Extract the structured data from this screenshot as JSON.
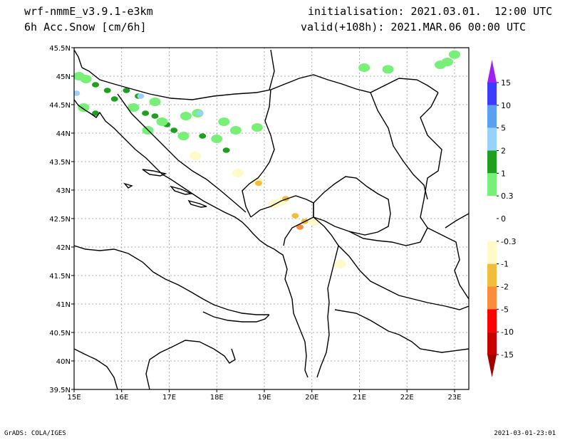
{
  "header": {
    "model": "wrf-nmmE_v3.9.1-e3km",
    "field": "6h Acc.Snow [cm/6h]",
    "initialisation": "initialisation: 2021.03.01.  12:00 UTC",
    "valid": "valid(+108h): 2021.MAR.06 00:00 UTC"
  },
  "footer": {
    "credit": "GrADS: COLA/IGES",
    "timestamp": "2021-03-01-23:01"
  },
  "map": {
    "lon_range": [
      15,
      23.3
    ],
    "lat_range": [
      39.5,
      45.5
    ],
    "lon_ticks": [
      {
        "value": 15,
        "label": "15E"
      },
      {
        "value": 16,
        "label": "16E"
      },
      {
        "value": 17,
        "label": "17E"
      },
      {
        "value": 18,
        "label": "18E"
      },
      {
        "value": 19,
        "label": "19E"
      },
      {
        "value": 20,
        "label": "20E"
      },
      {
        "value": 21,
        "label": "21E"
      },
      {
        "value": 22,
        "label": "22E"
      },
      {
        "value": 23,
        "label": "23E"
      }
    ],
    "lat_ticks": [
      {
        "value": 39.5,
        "label": "39.5N"
      },
      {
        "value": 40,
        "label": "40N"
      },
      {
        "value": 40.5,
        "label": "40.5N"
      },
      {
        "value": 41,
        "label": "41N"
      },
      {
        "value": 41.5,
        "label": "41.5N"
      },
      {
        "value": 42,
        "label": "42N"
      },
      {
        "value": 42.5,
        "label": "42.5N"
      },
      {
        "value": 43,
        "label": "43N"
      },
      {
        "value": 43.5,
        "label": "43.5N"
      },
      {
        "value": 44,
        "label": "44N"
      },
      {
        "value": 44.5,
        "label": "44.5N"
      },
      {
        "value": 45,
        "label": "45N"
      },
      {
        "value": 45.5,
        "label": "45.5N"
      }
    ],
    "grid": true,
    "colorbar": {
      "bins": [
        {
          "label": "15",
          "color": "#a020f0"
        },
        {
          "label": "10",
          "color": "#3c3cff"
        },
        {
          "label": "5",
          "color": "#5aa0f0"
        },
        {
          "label": "2",
          "color": "#96d2fa"
        },
        {
          "label": "1",
          "color": "#1ea01e"
        },
        {
          "label": "0.3",
          "color": "#78f078"
        },
        {
          "label": "0",
          "color": "#ffffff"
        },
        {
          "label": "-0.3",
          "color": "#ffffff"
        },
        {
          "label": "-1",
          "color": "#fffac8"
        },
        {
          "label": "-2",
          "color": "#f0be3c"
        },
        {
          "label": "-5",
          "color": "#fa8c3c"
        },
        {
          "label": "-10",
          "color": "#ff0000"
        },
        {
          "label": "-15",
          "color": "#c80000"
        }
      ],
      "top_color": "#a020f0",
      "bottom_color": "#a00000"
    },
    "snow_spots": [
      {
        "lon": 15.1,
        "lat": 45.0,
        "level": "0.3"
      },
      {
        "lon": 15.25,
        "lat": 44.95,
        "level": "0.3"
      },
      {
        "lon": 15.45,
        "lat": 44.85,
        "level": "1"
      },
      {
        "lon": 15.7,
        "lat": 44.75,
        "level": "1"
      },
      {
        "lon": 15.85,
        "lat": 44.6,
        "level": "1"
      },
      {
        "lon": 15.05,
        "lat": 44.7,
        "level": "2"
      },
      {
        "lon": 15.2,
        "lat": 44.45,
        "level": "0.3"
      },
      {
        "lon": 15.45,
        "lat": 44.35,
        "level": "1"
      },
      {
        "lon": 16.1,
        "lat": 44.75,
        "level": "1"
      },
      {
        "lon": 16.35,
        "lat": 44.65,
        "level": "1"
      },
      {
        "lon": 16.4,
        "lat": 44.65,
        "level": "2"
      },
      {
        "lon": 16.25,
        "lat": 44.45,
        "level": "0.3"
      },
      {
        "lon": 16.5,
        "lat": 44.35,
        "level": "1"
      },
      {
        "lon": 16.7,
        "lat": 44.3,
        "level": "1"
      },
      {
        "lon": 16.95,
        "lat": 44.15,
        "level": "1"
      },
      {
        "lon": 17.1,
        "lat": 44.05,
        "level": "1"
      },
      {
        "lon": 16.7,
        "lat": 44.55,
        "level": "0.3"
      },
      {
        "lon": 16.85,
        "lat": 44.2,
        "level": "0.3"
      },
      {
        "lon": 17.6,
        "lat": 44.35,
        "level": "0.3"
      },
      {
        "lon": 17.65,
        "lat": 44.35,
        "level": "2"
      },
      {
        "lon": 17.3,
        "lat": 43.95,
        "level": "0.3"
      },
      {
        "lon": 17.7,
        "lat": 43.95,
        "level": "1"
      },
      {
        "lon": 17.35,
        "lat": 44.3,
        "level": "0.3"
      },
      {
        "lon": 18.15,
        "lat": 44.2,
        "level": "0.3"
      },
      {
        "lon": 18.0,
        "lat": 43.9,
        "level": "0.3"
      },
      {
        "lon": 18.4,
        "lat": 44.05,
        "level": "0.3"
      },
      {
        "lon": 18.2,
        "lat": 43.7,
        "level": "1"
      },
      {
        "lon": 18.85,
        "lat": 44.1,
        "level": "0.3"
      },
      {
        "lon": 16.55,
        "lat": 44.05,
        "level": "0.3"
      },
      {
        "lon": 21.1,
        "lat": 45.15,
        "level": "0.3"
      },
      {
        "lon": 21.6,
        "lat": 45.12,
        "level": "0.3"
      },
      {
        "lon": 22.85,
        "lat": 45.25,
        "level": "0.3"
      },
      {
        "lon": 23.0,
        "lat": 45.38,
        "level": "0.3"
      },
      {
        "lon": 22.7,
        "lat": 45.2,
        "level": "0.3"
      }
    ],
    "negative_spots": [
      {
        "lon": 17.55,
        "lat": 43.6,
        "level": "-1"
      },
      {
        "lon": 18.45,
        "lat": 43.3,
        "level": "-1"
      },
      {
        "lon": 18.85,
        "lat": 43.15,
        "level": "-1"
      },
      {
        "lon": 18.88,
        "lat": 43.12,
        "level": "-2"
      },
      {
        "lon": 19.35,
        "lat": 42.8,
        "level": "-1"
      },
      {
        "lon": 19.45,
        "lat": 42.85,
        "level": "-2"
      },
      {
        "lon": 19.2,
        "lat": 42.75,
        "level": "-1"
      },
      {
        "lon": 19.65,
        "lat": 42.55,
        "level": "-2"
      },
      {
        "lon": 19.85,
        "lat": 42.45,
        "level": "-2"
      },
      {
        "lon": 19.75,
        "lat": 42.35,
        "level": "-5"
      },
      {
        "lon": 20.05,
        "lat": 42.45,
        "level": "-1"
      },
      {
        "lon": 20.6,
        "lat": 41.7,
        "level": "-1"
      }
    ]
  }
}
